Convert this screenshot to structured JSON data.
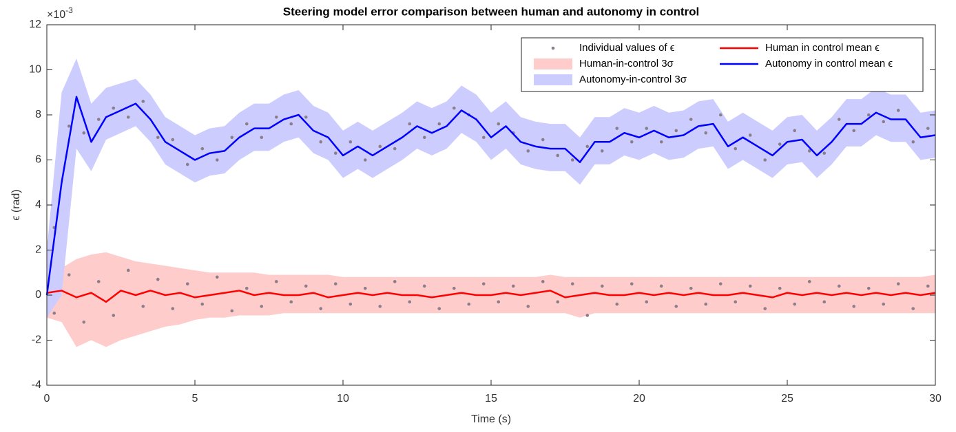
{
  "chart_data": {
    "type": "line",
    "title": "Steering model error comparison between human and autonomy in control",
    "xlabel": "Time (s)",
    "ylabel": "ϵ (rad)",
    "y_multiplier": {
      "base": "×10",
      "exponent": "-3"
    },
    "xlim": [
      0,
      30
    ],
    "xticks": [
      0,
      5,
      10,
      15,
      20,
      25,
      30
    ],
    "ylim": [
      -4,
      12
    ],
    "yticks": [
      -4,
      -2,
      0,
      2,
      4,
      6,
      8,
      10,
      12
    ],
    "grid": false,
    "legend": "upper right",
    "x": [
      0,
      0.5,
      1,
      1.5,
      2,
      2.5,
      3,
      3.5,
      4,
      4.5,
      5,
      5.5,
      6,
      6.5,
      7,
      7.5,
      8,
      8.5,
      9,
      9.5,
      10,
      10.5,
      11,
      11.5,
      12,
      12.5,
      13,
      13.5,
      14,
      14.5,
      15,
      15.5,
      16,
      16.5,
      17,
      17.5,
      18,
      18.5,
      19,
      19.5,
      20,
      20.5,
      21,
      21.5,
      22,
      22.5,
      23,
      23.5,
      24,
      24.5,
      25,
      25.5,
      26,
      26.5,
      27,
      27.5,
      28,
      28.5,
      29,
      29.5,
      30
    ],
    "series": [
      {
        "name": "Individual values of ϵ",
        "kind": "scatter",
        "color": "#8a7e8a",
        "x": [
          0.25,
          0.75,
          1.25,
          1.75,
          2.25,
          2.75,
          3.25,
          3.75,
          4.25,
          4.75,
          5.25,
          5.75,
          6.25,
          6.75,
          7.25,
          7.75,
          8.25,
          8.75,
          9.25,
          9.75,
          10.25,
          10.75,
          11.25,
          11.75,
          12.25,
          12.75,
          13.25,
          13.75,
          14.25,
          14.75,
          15.25,
          15.75,
          16.25,
          16.75,
          17.25,
          17.75,
          18.25,
          18.75,
          19.25,
          19.75,
          20.25,
          20.75,
          21.25,
          21.75,
          22.25,
          22.75,
          23.25,
          23.75,
          24.25,
          24.75,
          25.25,
          25.75,
          26.25,
          26.75,
          27.25,
          27.75,
          28.25,
          28.75,
          29.25,
          29.75,
          0.25,
          0.75,
          1.25,
          1.75,
          2.25,
          2.75,
          3.25,
          3.75,
          4.25,
          4.75,
          5.25,
          5.75,
          6.25,
          6.75,
          7.25,
          7.75,
          8.25,
          8.75,
          9.25,
          9.75,
          10.25,
          10.75,
          11.25,
          11.75,
          12.25,
          12.75,
          13.25,
          13.75,
          14.25,
          14.75,
          15.25,
          15.75,
          16.25,
          16.75,
          17.25,
          17.75,
          18.25,
          18.75,
          19.25,
          19.75,
          20.25,
          20.75,
          21.25,
          21.75,
          22.25,
          22.75,
          23.25,
          23.75,
          24.25,
          24.75,
          25.25,
          25.75,
          26.25,
          26.75,
          27.25,
          27.75,
          28.25,
          28.75,
          29.25,
          29.75
        ],
        "values": [
          3.0,
          7.5,
          7.2,
          7.8,
          8.3,
          7.9,
          8.6,
          7.0,
          6.9,
          5.8,
          6.5,
          6.0,
          7.0,
          7.6,
          7.0,
          7.9,
          7.6,
          7.9,
          6.8,
          6.3,
          6.8,
          6.0,
          6.6,
          6.5,
          7.6,
          7.0,
          7.6,
          8.3,
          8.0,
          7.0,
          7.6,
          7.2,
          6.4,
          6.9,
          6.2,
          6.0,
          6.6,
          6.4,
          7.4,
          6.8,
          7.4,
          6.8,
          7.3,
          7.8,
          7.2,
          8.0,
          6.5,
          7.1,
          6.0,
          6.7,
          7.3,
          6.4,
          6.3,
          7.8,
          7.3,
          8.0,
          7.7,
          8.2,
          6.8,
          7.4,
          -0.8,
          0.9,
          -1.2,
          0.6,
          -0.9,
          1.1,
          -0.5,
          0.7,
          -0.6,
          0.5,
          -0.4,
          0.8,
          -0.7,
          0.3,
          -0.5,
          0.6,
          -0.3,
          0.4,
          -0.6,
          0.5,
          -0.4,
          0.3,
          -0.5,
          0.6,
          -0.3,
          0.4,
          -0.6,
          0.3,
          -0.4,
          0.5,
          -0.3,
          0.4,
          -0.5,
          0.6,
          -0.3,
          0.5,
          -0.9,
          0.4,
          -0.4,
          0.5,
          -0.3,
          0.4,
          -0.5,
          0.3,
          -0.4,
          0.5,
          -0.3,
          0.4,
          -0.6,
          0.3,
          -0.4,
          0.6,
          -0.3,
          0.4,
          -0.5,
          0.3,
          -0.4,
          0.5,
          -0.6,
          0.4
        ]
      },
      {
        "name": "Human-in-control 3σ",
        "kind": "band",
        "color": "#ffcccc",
        "upper": [
          2.5,
          1.2,
          1.6,
          1.8,
          1.9,
          1.7,
          1.5,
          1.4,
          1.3,
          1.2,
          1.1,
          1.0,
          1.0,
          1.0,
          1.0,
          0.9,
          0.9,
          0.9,
          0.9,
          0.9,
          0.8,
          0.8,
          0.8,
          0.8,
          0.8,
          0.8,
          0.8,
          0.8,
          0.8,
          0.8,
          0.8,
          0.8,
          0.8,
          0.8,
          0.9,
          0.8,
          0.8,
          0.8,
          0.8,
          0.8,
          0.8,
          0.8,
          0.8,
          0.8,
          0.8,
          0.8,
          0.8,
          0.8,
          0.8,
          0.8,
          0.8,
          0.8,
          0.8,
          0.8,
          0.8,
          0.8,
          0.8,
          0.8,
          0.8,
          0.8,
          0.9
        ],
        "lower": [
          -1.0,
          -1.2,
          -2.3,
          -2.0,
          -2.3,
          -2.0,
          -1.8,
          -1.6,
          -1.4,
          -1.3,
          -1.1,
          -1.0,
          -1.0,
          -0.9,
          -0.9,
          -0.9,
          -0.8,
          -0.8,
          -0.8,
          -0.8,
          -0.8,
          -0.8,
          -0.8,
          -0.8,
          -0.8,
          -0.8,
          -0.8,
          -0.8,
          -0.8,
          -0.8,
          -0.8,
          -0.8,
          -0.8,
          -0.8,
          -0.8,
          -0.8,
          -1.0,
          -0.8,
          -0.8,
          -0.8,
          -0.8,
          -0.8,
          -0.8,
          -0.8,
          -0.8,
          -0.8,
          -0.8,
          -0.8,
          -0.8,
          -0.8,
          -0.8,
          -0.8,
          -0.8,
          -0.8,
          -0.8,
          -0.8,
          -0.8,
          -0.8,
          -0.8,
          -0.8,
          -0.8
        ]
      },
      {
        "name": "Autonomy-in-control 3σ",
        "kind": "band",
        "color": "#ccccff",
        "upper": [
          2,
          9,
          10.5,
          8.5,
          9.2,
          9.4,
          9.6,
          8.9,
          7.9,
          7.5,
          7.1,
          7.4,
          7.5,
          8.1,
          8.5,
          8.5,
          8.9,
          9.1,
          8.4,
          8.1,
          7.3,
          7.7,
          7.3,
          7.7,
          8.1,
          8.6,
          8.3,
          8.6,
          9.3,
          8.9,
          8.1,
          8.6,
          7.9,
          7.7,
          7.6,
          7.6,
          7.0,
          7.9,
          7.9,
          8.3,
          8.1,
          8.4,
          8.1,
          8.2,
          8.6,
          8.7,
          7.7,
          8.1,
          7.7,
          7.3,
          7.9,
          8.0,
          7.3,
          7.9,
          8.7,
          8.7,
          9.2,
          8.9,
          8.9,
          8.1,
          8.2
        ],
        "lower": [
          -1,
          0,
          6.5,
          5.5,
          6.9,
          7.2,
          7.5,
          6.8,
          5.8,
          5.4,
          5.0,
          5.3,
          5.4,
          6.0,
          6.4,
          6.4,
          6.8,
          7.0,
          6.3,
          6.0,
          5.2,
          5.6,
          5.2,
          5.6,
          6.0,
          6.5,
          6.2,
          6.5,
          7.2,
          6.8,
          6.0,
          6.5,
          5.8,
          5.6,
          5.5,
          5.5,
          4.9,
          5.8,
          5.8,
          6.2,
          6.0,
          6.3,
          6.0,
          6.1,
          6.5,
          6.6,
          5.6,
          6.0,
          5.6,
          5.2,
          5.8,
          5.9,
          5.2,
          5.8,
          6.6,
          6.6,
          7.1,
          6.8,
          6.8,
          6.0,
          6.1
        ]
      },
      {
        "name": "Human in control mean ϵ",
        "kind": "line",
        "color": "#ff0000",
        "values": [
          0.1,
          0.2,
          -0.1,
          0.1,
          -0.3,
          0.2,
          0,
          0.2,
          0,
          0.1,
          -0.1,
          0,
          0.1,
          0.2,
          0,
          0.1,
          0,
          0,
          0.1,
          -0.1,
          0,
          0.1,
          0,
          0.1,
          0,
          0,
          -0.1,
          0,
          0.1,
          0,
          0,
          0.1,
          0,
          0.1,
          0.2,
          -0.1,
          0,
          0.1,
          0,
          0,
          0.1,
          0,
          0.1,
          0,
          0.1,
          0,
          0,
          0.1,
          0,
          -0.1,
          0.1,
          0,
          0.1,
          0,
          0.1,
          0,
          0.1,
          0,
          0.1,
          0,
          0.1
        ]
      },
      {
        "name": "Autonomy in control mean ϵ",
        "kind": "line",
        "color": "#0000ff",
        "values": [
          0,
          5,
          8.8,
          6.8,
          7.9,
          8.2,
          8.5,
          7.8,
          6.8,
          6.4,
          6.0,
          6.3,
          6.4,
          7.0,
          7.4,
          7.4,
          7.8,
          8.0,
          7.3,
          7.0,
          6.2,
          6.6,
          6.2,
          6.6,
          7.0,
          7.5,
          7.2,
          7.5,
          8.2,
          7.8,
          7.0,
          7.5,
          6.8,
          6.6,
          6.5,
          6.5,
          5.9,
          6.8,
          6.8,
          7.2,
          7.0,
          7.3,
          7.0,
          7.1,
          7.5,
          7.6,
          6.6,
          7.0,
          6.6,
          6.2,
          6.8,
          6.9,
          6.2,
          6.8,
          7.6,
          7.6,
          8.1,
          7.8,
          7.8,
          7.0,
          7.1
        ]
      }
    ]
  }
}
